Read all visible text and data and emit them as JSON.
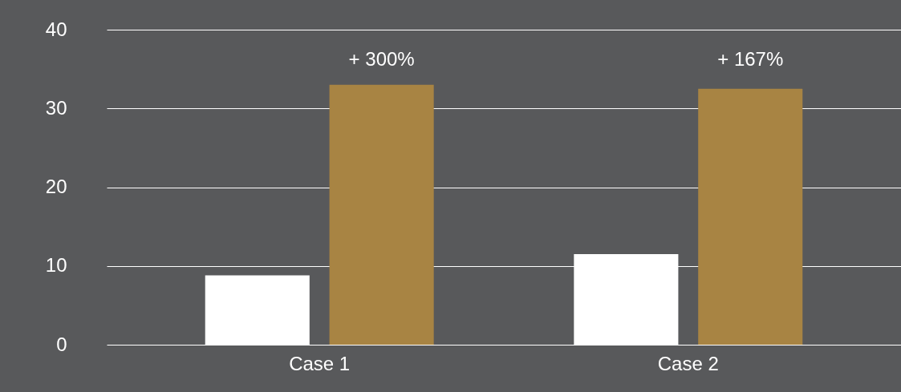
{
  "chart_data": {
    "type": "bar",
    "categories": [
      "Case 1",
      "Case 2"
    ],
    "series": [
      {
        "color": "#ffffff",
        "values": [
          8.8,
          11.5
        ]
      },
      {
        "color": "#a88443",
        "values": [
          33,
          32.5
        ]
      }
    ],
    "annotations": [
      "+ 300%",
      "+ 167%"
    ],
    "ylim": [
      0,
      40
    ],
    "yticks": [
      0,
      10,
      20,
      30,
      40
    ],
    "grid": "y"
  }
}
